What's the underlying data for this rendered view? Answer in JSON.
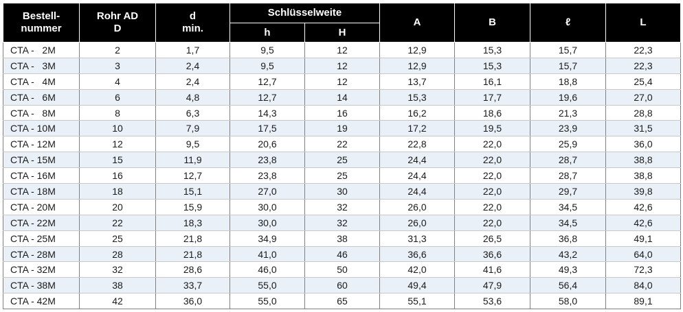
{
  "headers": {
    "bestellnummer": [
      "Bestell-",
      "nummer"
    ],
    "rohr_ad": [
      "Rohr AD",
      "D"
    ],
    "d_min": [
      "d",
      "min."
    ],
    "schluesselweite": "Schlüsselweite",
    "h": "h",
    "H": "H",
    "A": "A",
    "B": "B",
    "l": "ℓ",
    "L": "L"
  },
  "rows": [
    [
      "CTA -   2M",
      "2",
      "1,7",
      "9,5",
      "12",
      "12,9",
      "15,3",
      "15,7",
      "22,3"
    ],
    [
      "CTA -   3M",
      "3",
      "2,4",
      "9,5",
      "12",
      "12,9",
      "15,3",
      "15,7",
      "22,3"
    ],
    [
      "CTA -   4M",
      "4",
      "2,4",
      "12,7",
      "12",
      "13,7",
      "16,1",
      "18,8",
      "25,4"
    ],
    [
      "CTA -   6M",
      "6",
      "4,8",
      "12,7",
      "14",
      "15,3",
      "17,7",
      "19,6",
      "27,0"
    ],
    [
      "CTA -   8M",
      "8",
      "6,3",
      "14,3",
      "16",
      "16,2",
      "18,6",
      "21,3",
      "28,8"
    ],
    [
      "CTA - 10M",
      "10",
      "7,9",
      "17,5",
      "19",
      "17,2",
      "19,5",
      "23,9",
      "31,5"
    ],
    [
      "CTA - 12M",
      "12",
      "9,5",
      "20,6",
      "22",
      "22,8",
      "22,0",
      "25,9",
      "36,0"
    ],
    [
      "CTA - 15M",
      "15",
      "11,9",
      "23,8",
      "25",
      "24,4",
      "22,0",
      "28,7",
      "38,8"
    ],
    [
      "CTA - 16M",
      "16",
      "12,7",
      "23,8",
      "25",
      "24,4",
      "22,0",
      "28,7",
      "38,8"
    ],
    [
      "CTA - 18M",
      "18",
      "15,1",
      "27,0",
      "30",
      "24,4",
      "22,0",
      "29,7",
      "39,8"
    ],
    [
      "CTA - 20M",
      "20",
      "15,9",
      "30,0",
      "32",
      "26,0",
      "22,0",
      "34,5",
      "42,6"
    ],
    [
      "CTA - 22M",
      "22",
      "18,3",
      "30,0",
      "32",
      "26,0",
      "22,0",
      "34,5",
      "42,6"
    ],
    [
      "CTA - 25M",
      "25",
      "21,8",
      "34,9",
      "38",
      "31,3",
      "26,5",
      "36,8",
      "49,1"
    ],
    [
      "CTA - 28M",
      "28",
      "21,8",
      "41,0",
      "46",
      "36,6",
      "36,6",
      "43,2",
      "64,0"
    ],
    [
      "CTA - 32M",
      "32",
      "28,6",
      "46,0",
      "50",
      "42,0",
      "41,6",
      "49,3",
      "72,3"
    ],
    [
      "CTA - 38M",
      "38",
      "33,7",
      "55,0",
      "60",
      "49,4",
      "47,9",
      "56,4",
      "84,0"
    ],
    [
      "CTA - 42M",
      "42",
      "36,0",
      "55,0",
      "65",
      "55,1",
      "53,6",
      "58,0",
      "89,1"
    ]
  ]
}
